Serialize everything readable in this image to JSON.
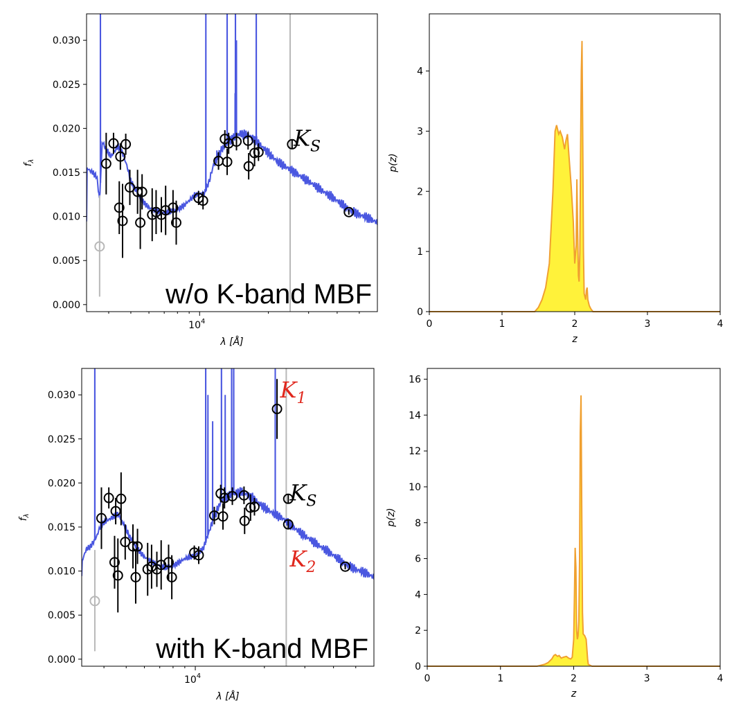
{
  "colors": {
    "model": "#4a57e0",
    "point": "#000000",
    "excluded": "#b8b8b8",
    "vline": "#b8b8b8",
    "pz_fill": "#fff23a",
    "pz_line": "#f0a030",
    "red": "#e0281e"
  },
  "chart_data": [
    {
      "id": "sed-top",
      "type": "scatter",
      "title": "",
      "annotation": "w/o K-band MBF",
      "xlabel": "λ [Å]",
      "ylabel": "f_λ",
      "xscale": "log",
      "xlim": [
        3200,
        60000
      ],
      "ylim": [
        -0.0008,
        0.033
      ],
      "x_ticks": [
        {
          "value": 10000,
          "label": "10",
          "exp": "4"
        }
      ],
      "y_ticks": [
        {
          "value": 0.0,
          "label": "0.000"
        },
        {
          "value": 0.005,
          "label": "0.005"
        },
        {
          "value": 0.01,
          "label": "0.010"
        },
        {
          "value": 0.015,
          "label": "0.015"
        },
        {
          "value": 0.02,
          "label": "0.020"
        },
        {
          "value": 0.025,
          "label": "0.025"
        },
        {
          "value": 0.03,
          "label": "0.030"
        }
      ],
      "vline_x": 24900,
      "model_key": "top",
      "points": [
        {
          "x": 3900,
          "y": 0.016,
          "err": 0.0035
        },
        {
          "x": 4200,
          "y": 0.0183,
          "err": 0.0012
        },
        {
          "x": 4450,
          "y": 0.011,
          "err": 0.003
        },
        {
          "x": 4500,
          "y": 0.0168,
          "err": 0.0015
        },
        {
          "x": 4600,
          "y": 0.0095,
          "err": 0.0042
        },
        {
          "x": 4750,
          "y": 0.0182,
          "err": 0.0012
        },
        {
          "x": 4950,
          "y": 0.0133,
          "err": 0.002
        },
        {
          "x": 5350,
          "y": 0.0128,
          "err": 0.0025
        },
        {
          "x": 5500,
          "y": 0.0093,
          "err": 0.003
        },
        {
          "x": 5600,
          "y": 0.0128,
          "err": 0.002
        },
        {
          "x": 6200,
          "y": 0.0102,
          "err": 0.003
        },
        {
          "x": 6450,
          "y": 0.0105,
          "err": 0.0025
        },
        {
          "x": 6800,
          "y": 0.0102,
          "err": 0.002
        },
        {
          "x": 7100,
          "y": 0.0107,
          "err": 0.0028
        },
        {
          "x": 7650,
          "y": 0.011,
          "err": 0.002
        },
        {
          "x": 7900,
          "y": 0.0093,
          "err": 0.0025
        },
        {
          "x": 9900,
          "y": 0.0121,
          "err": 0.0008
        },
        {
          "x": 10350,
          "y": 0.0118,
          "err": 0.001
        },
        {
          "x": 12100,
          "y": 0.0163,
          "err": 0.001
        },
        {
          "x": 12900,
          "y": 0.0188,
          "err": 0.001
        },
        {
          "x": 13200,
          "y": 0.0162,
          "err": 0.0015
        },
        {
          "x": 13400,
          "y": 0.0183,
          "err": 0.0012
        },
        {
          "x": 14500,
          "y": 0.0185,
          "err": 0.001
        },
        {
          "x": 16300,
          "y": 0.0186,
          "err": 0.001
        },
        {
          "x": 16400,
          "y": 0.0157,
          "err": 0.0015
        },
        {
          "x": 17400,
          "y": 0.0172,
          "err": 0.0015
        },
        {
          "x": 18100,
          "y": 0.0173,
          "err": 0.001
        },
        {
          "x": 25400,
          "y": 0.0182,
          "err": 0.0005
        },
        {
          "x": 45000,
          "y": 0.0105,
          "err": 0.0003
        }
      ],
      "excluded_points": [
        {
          "x": 3650,
          "y": 0.0066,
          "lo": 0.0009,
          "hi": 0.0124
        }
      ],
      "labels": [
        {
          "text": "K",
          "sub": "S",
          "x": 25800,
          "y": 0.0188,
          "color": "#000000"
        }
      ]
    },
    {
      "id": "pz-top",
      "type": "area",
      "title": "",
      "xlabel": "z",
      "ylabel": "p(z)",
      "xlim": [
        0,
        4
      ],
      "ylim": [
        0,
        4.95
      ],
      "x_ticks": [
        0,
        1,
        2,
        3,
        4
      ],
      "y_ticks": [
        0,
        1,
        2,
        3,
        4
      ],
      "x": [
        0.0,
        1.45,
        1.5,
        1.55,
        1.6,
        1.65,
        1.7,
        1.73,
        1.75,
        1.78,
        1.8,
        1.83,
        1.86,
        1.88,
        1.9,
        1.92,
        1.95,
        1.98,
        2.0,
        2.02,
        2.03,
        2.04,
        2.05,
        2.06,
        2.07,
        2.08,
        2.09,
        2.1,
        2.11,
        2.12,
        2.13,
        2.14,
        2.15,
        2.16,
        2.17,
        2.18,
        2.2,
        2.22,
        2.25,
        4.0
      ],
      "y": [
        0.0,
        0.0,
        0.07,
        0.2,
        0.4,
        0.8,
        2.0,
        3.0,
        3.1,
        2.95,
        3.0,
        2.9,
        2.7,
        2.85,
        2.95,
        2.6,
        2.1,
        1.5,
        0.8,
        1.1,
        2.2,
        1.3,
        0.6,
        0.5,
        1.0,
        2.6,
        4.0,
        4.5,
        3.0,
        1.0,
        0.3,
        0.25,
        0.2,
        0.35,
        0.4,
        0.2,
        0.1,
        0.05,
        0.0,
        0.0
      ]
    },
    {
      "id": "sed-bottom",
      "type": "scatter",
      "title": "",
      "annotation": "with K-band MBF",
      "xlabel": "λ [Å]",
      "ylabel": "f_λ",
      "xscale": "log",
      "xlim": [
        3200,
        60000
      ],
      "ylim": [
        -0.0008,
        0.033
      ],
      "x_ticks": [
        {
          "value": 10000,
          "label": "10",
          "exp": "4"
        }
      ],
      "y_ticks": [
        {
          "value": 0.0,
          "label": "0.000"
        },
        {
          "value": 0.005,
          "label": "0.005"
        },
        {
          "value": 0.01,
          "label": "0.010"
        },
        {
          "value": 0.015,
          "label": "0.015"
        },
        {
          "value": 0.02,
          "label": "0.020"
        },
        {
          "value": 0.025,
          "label": "0.025"
        },
        {
          "value": 0.03,
          "label": "0.030"
        }
      ],
      "vline_x": 24900,
      "model_key": "bottom",
      "points": [
        {
          "x": 3900,
          "y": 0.016,
          "err": 0.0035
        },
        {
          "x": 4200,
          "y": 0.0183,
          "err": 0.0012
        },
        {
          "x": 4450,
          "y": 0.011,
          "err": 0.003
        },
        {
          "x": 4500,
          "y": 0.0168,
          "err": 0.0015
        },
        {
          "x": 4600,
          "y": 0.0095,
          "err": 0.0042
        },
        {
          "x": 4750,
          "y": 0.0182,
          "err": 0.003
        },
        {
          "x": 4950,
          "y": 0.0133,
          "err": 0.002
        },
        {
          "x": 5350,
          "y": 0.0128,
          "err": 0.0025
        },
        {
          "x": 5500,
          "y": 0.0093,
          "err": 0.003
        },
        {
          "x": 5600,
          "y": 0.0128,
          "err": 0.002
        },
        {
          "x": 6200,
          "y": 0.0102,
          "err": 0.003
        },
        {
          "x": 6450,
          "y": 0.0105,
          "err": 0.0025
        },
        {
          "x": 6800,
          "y": 0.0102,
          "err": 0.002
        },
        {
          "x": 7100,
          "y": 0.0107,
          "err": 0.0028
        },
        {
          "x": 7650,
          "y": 0.011,
          "err": 0.002
        },
        {
          "x": 7900,
          "y": 0.0093,
          "err": 0.0025
        },
        {
          "x": 9900,
          "y": 0.0121,
          "err": 0.0008
        },
        {
          "x": 10350,
          "y": 0.0118,
          "err": 0.001
        },
        {
          "x": 12100,
          "y": 0.0163,
          "err": 0.001
        },
        {
          "x": 12900,
          "y": 0.0188,
          "err": 0.001
        },
        {
          "x": 13200,
          "y": 0.0162,
          "err": 0.0015
        },
        {
          "x": 13400,
          "y": 0.0183,
          "err": 0.0012
        },
        {
          "x": 14500,
          "y": 0.0185,
          "err": 0.001
        },
        {
          "x": 16300,
          "y": 0.0186,
          "err": 0.001
        },
        {
          "x": 16400,
          "y": 0.0157,
          "err": 0.0015
        },
        {
          "x": 17400,
          "y": 0.0172,
          "err": 0.0015
        },
        {
          "x": 18100,
          "y": 0.0173,
          "err": 0.001
        },
        {
          "x": 22700,
          "y": 0.0284,
          "err": 0.0034
        },
        {
          "x": 25400,
          "y": 0.0182,
          "err": 0.0005
        },
        {
          "x": 25400,
          "y": 0.0153,
          "err": 0.0005
        },
        {
          "x": 45000,
          "y": 0.0105,
          "err": 0.0003
        }
      ],
      "excluded_points": [
        {
          "x": 3650,
          "y": 0.0066,
          "lo": 0.0009,
          "hi": 0.0124
        }
      ],
      "labels": [
        {
          "text": "K",
          "sub": "1",
          "x": 23400,
          "y": 0.0305,
          "color": "#e0281e"
        },
        {
          "text": "K",
          "sub": "S",
          "x": 25800,
          "y": 0.0188,
          "color": "#000000"
        },
        {
          "text": "K",
          "sub": "2",
          "x": 25800,
          "y": 0.0113,
          "color": "#e0281e"
        }
      ]
    },
    {
      "id": "pz-bottom",
      "type": "area",
      "title": "",
      "xlabel": "z",
      "ylabel": "p(z)",
      "xlim": [
        0,
        4
      ],
      "ylim": [
        0,
        16.6
      ],
      "x_ticks": [
        0,
        1,
        2,
        3,
        4
      ],
      "y_ticks": [
        0,
        2,
        4,
        6,
        8,
        10,
        12,
        14,
        16
      ],
      "x": [
        0.0,
        1.5,
        1.6,
        1.65,
        1.7,
        1.73,
        1.75,
        1.78,
        1.8,
        1.83,
        1.86,
        1.9,
        1.93,
        1.96,
        1.98,
        2.0,
        2.01,
        2.02,
        2.03,
        2.04,
        2.05,
        2.06,
        2.07,
        2.08,
        2.09,
        2.1,
        2.11,
        2.12,
        2.13,
        2.15,
        2.17,
        2.19,
        2.2,
        2.25,
        4.0
      ],
      "y": [
        0.0,
        0.0,
        0.1,
        0.2,
        0.4,
        0.6,
        0.65,
        0.55,
        0.6,
        0.45,
        0.5,
        0.55,
        0.45,
        0.4,
        0.5,
        1.5,
        4.0,
        6.6,
        5.5,
        2.0,
        1.5,
        1.7,
        2.5,
        6.0,
        13.0,
        15.1,
        9.0,
        3.0,
        1.8,
        1.7,
        1.5,
        0.4,
        0.1,
        0.0,
        0.0
      ]
    }
  ]
}
